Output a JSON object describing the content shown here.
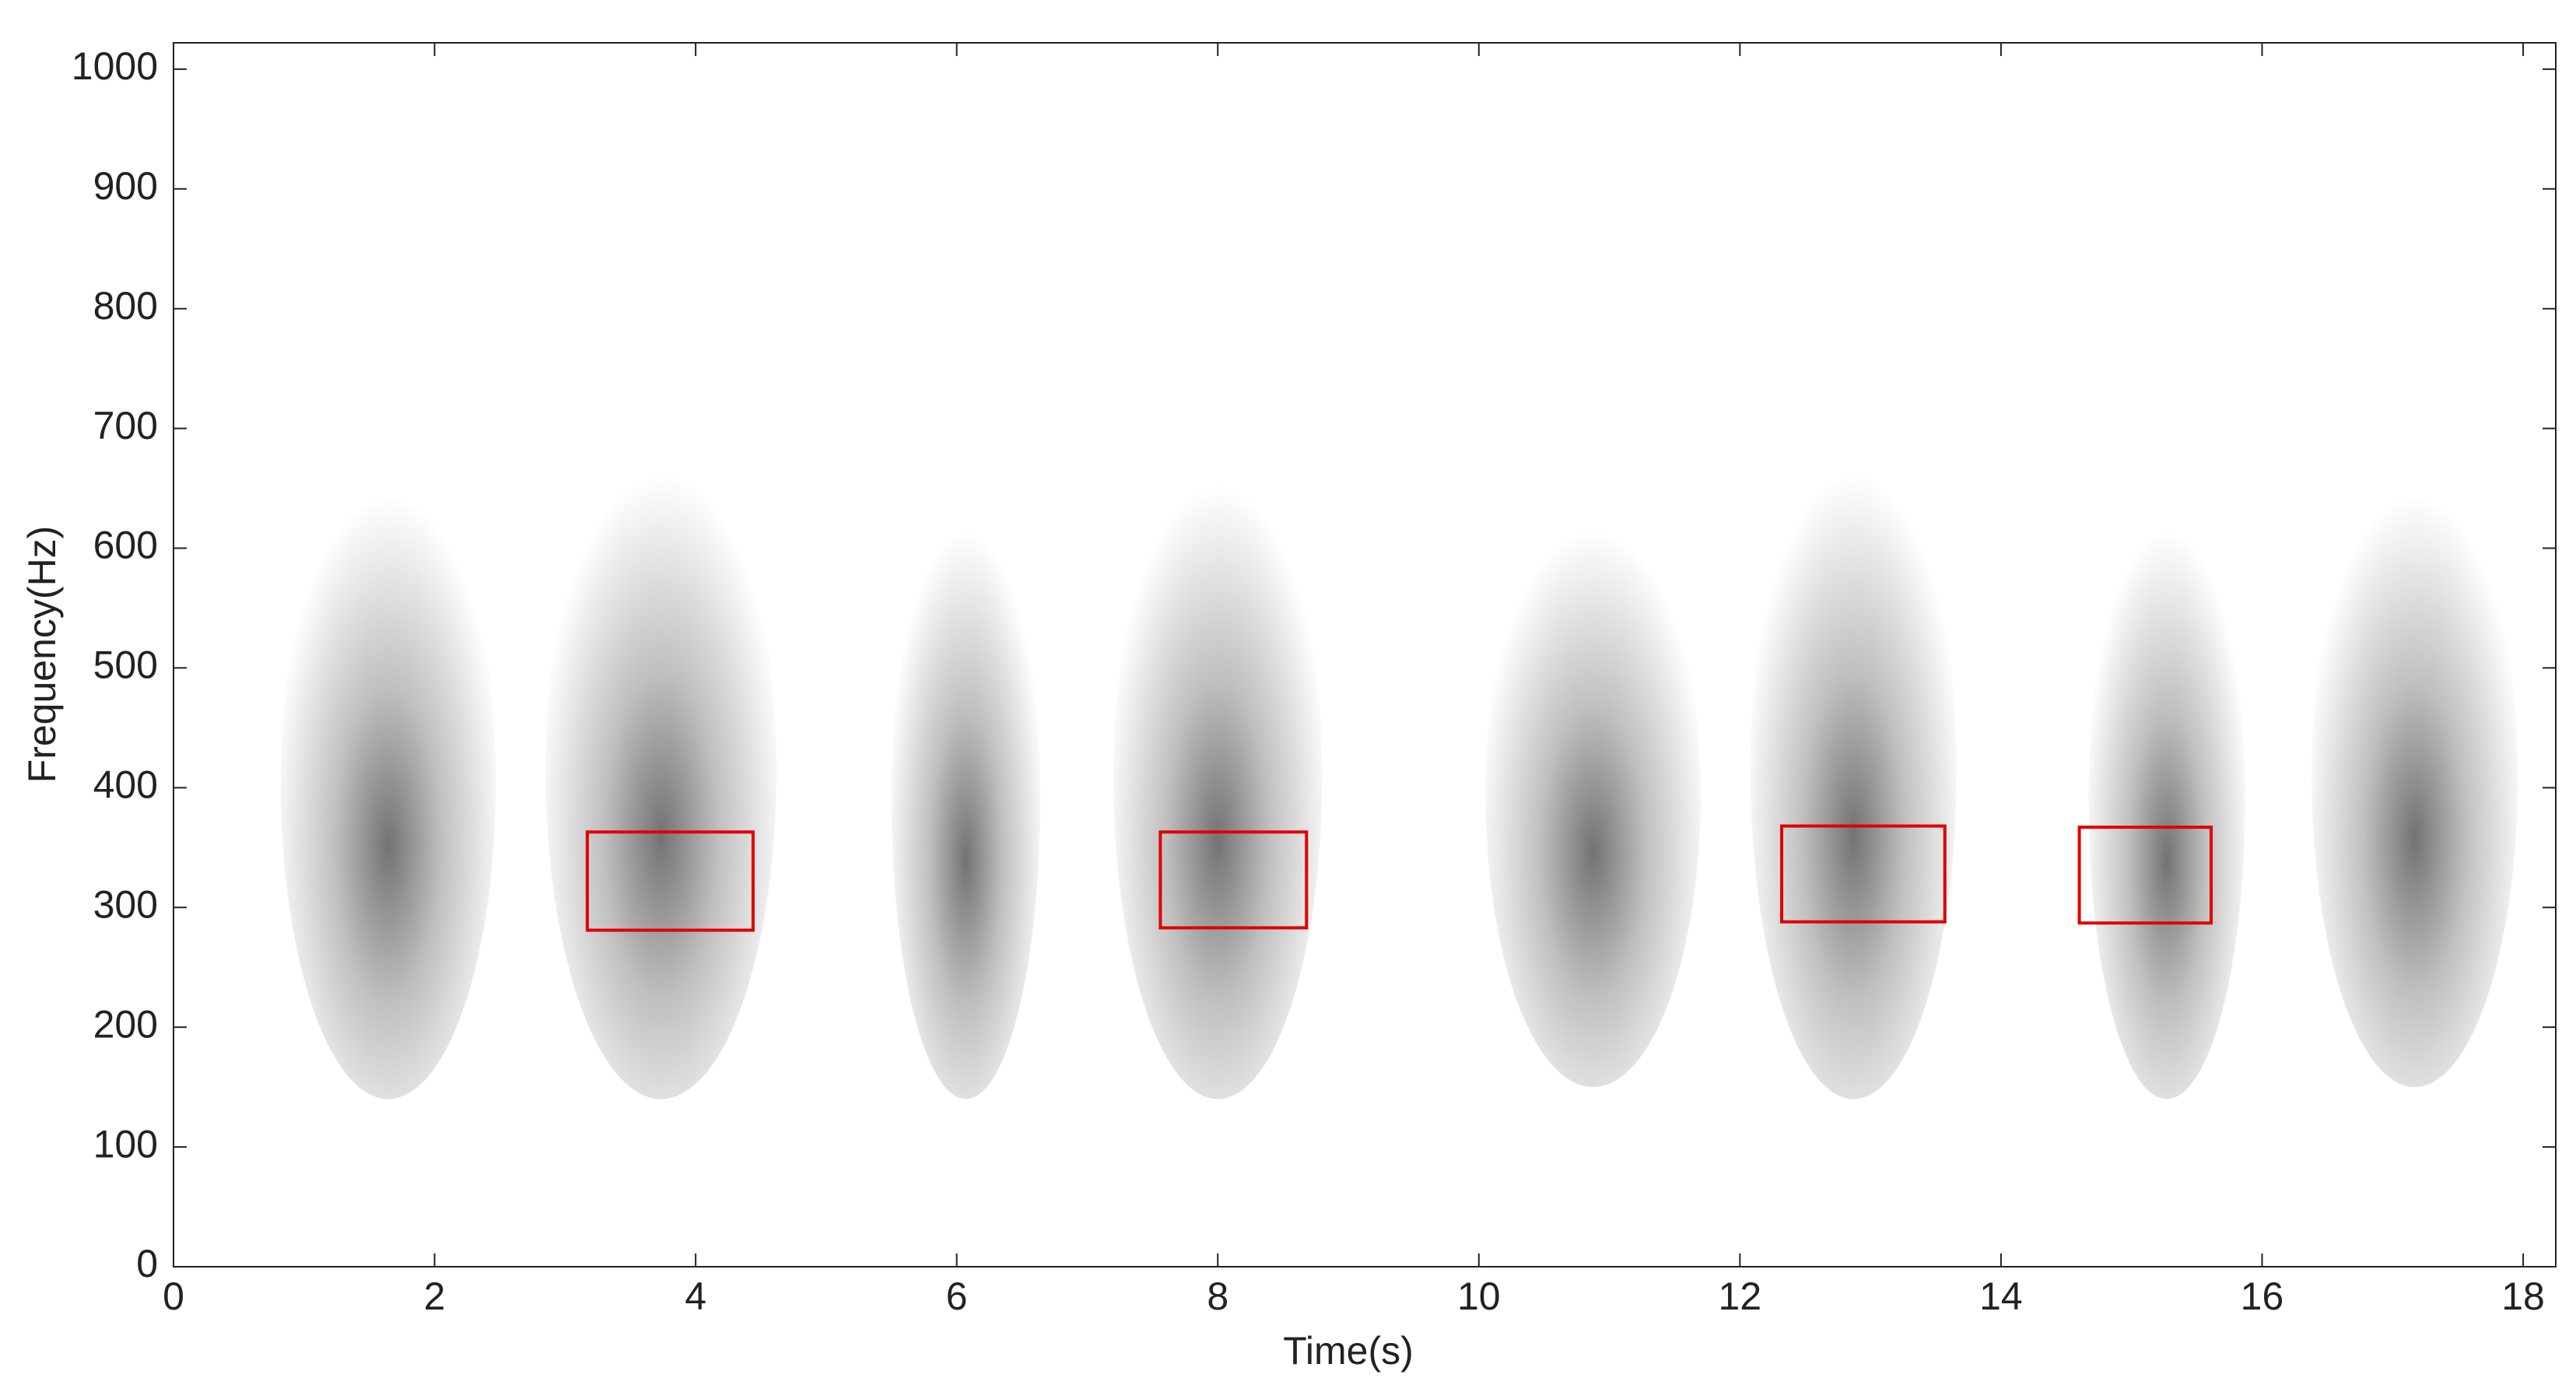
{
  "chart_data": {
    "type": "spectrogram",
    "xlabel": "Time(s)",
    "ylabel": "Frequency(Hz)",
    "xlim": [
      0,
      18.25
    ],
    "ylim": [
      0,
      1022
    ],
    "xticks": [
      0,
      2,
      4,
      6,
      8,
      10,
      12,
      14,
      16,
      18
    ],
    "yticks": [
      0,
      100,
      200,
      300,
      400,
      500,
      600,
      700,
      800,
      900,
      1000
    ],
    "color": "#000000",
    "regions": [
      {
        "x": [
          0.82,
          2.47
        ],
        "y": [
          140,
          670
        ]
      },
      {
        "x": [
          2.85,
          4.62
        ],
        "y": [
          140,
          690
        ]
      },
      {
        "x": [
          5.5,
          6.64
        ],
        "y": [
          140,
          640
        ]
      },
      {
        "x": [
          7.2,
          8.8
        ],
        "y": [
          140,
          680
        ]
      },
      {
        "x": [
          10.05,
          11.7
        ],
        "y": [
          150,
          640
        ]
      },
      {
        "x": [
          12.08,
          13.66
        ],
        "y": [
          140,
          690
        ]
      },
      {
        "x": [
          14.67,
          15.87
        ],
        "y": [
          140,
          640
        ]
      },
      {
        "x": [
          16.38,
          17.96
        ],
        "y": [
          150,
          670
        ]
      }
    ],
    "box_color": "#e00000",
    "boxes": [
      {
        "x": [
          3.17,
          4.44
        ],
        "y": [
          281,
          363
        ]
      },
      {
        "x": [
          7.56,
          8.68
        ],
        "y": [
          283,
          363
        ]
      },
      {
        "x": [
          12.32,
          13.57
        ],
        "y": [
          288,
          368
        ]
      },
      {
        "x": [
          14.6,
          15.61
        ],
        "y": [
          287,
          367
        ]
      }
    ]
  }
}
